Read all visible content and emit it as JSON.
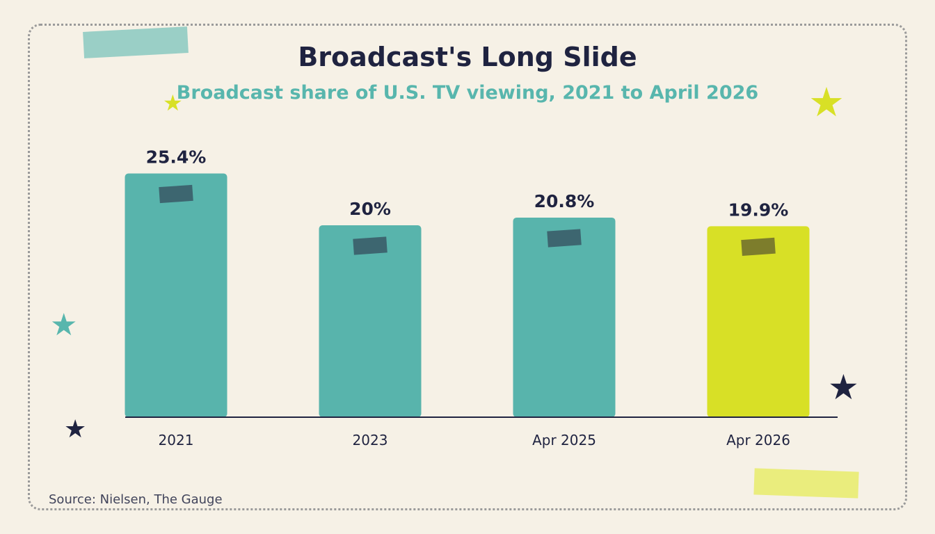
{
  "chart_data": {
    "type": "bar",
    "title": "Broadcast's Long Slide",
    "subtitle": "Broadcast share of U.S. TV viewing, 2021 to April 2026",
    "categories": [
      "2021",
      "2023",
      "Apr 2025",
      "Apr 2026"
    ],
    "values": [
      25.4,
      20,
      20.8,
      19.9
    ],
    "value_labels": [
      "25.4%",
      "20%",
      "20.8%",
      "19.9%"
    ],
    "unit": "%",
    "xlabel": "",
    "ylabel": "",
    "ylim": [
      0,
      30
    ],
    "grid": false,
    "legend": "none",
    "highlight_index": 3,
    "colors": {
      "bar": "#58b4ac",
      "highlight": "#d8e026",
      "bar_tape": "#3d6670",
      "highlight_tape": "#7d7d2c",
      "axis": "#1f2340",
      "text": "#1f2340",
      "accent": "#58b6ad"
    }
  },
  "source": "Source: Nielsen, The Gauge",
  "decorations": {
    "tape_top_color": "#5eb9b0",
    "tape_bottom_color": "#e6eb50",
    "star_icon": "★"
  }
}
